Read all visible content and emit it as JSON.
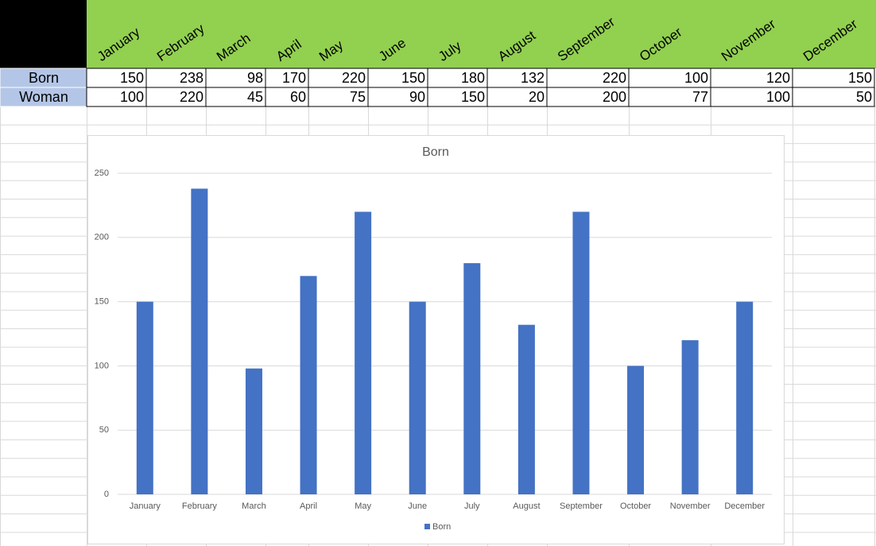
{
  "table": {
    "months": [
      "January",
      "February",
      "March",
      "April",
      "May",
      "June",
      "July",
      "August",
      "September",
      "October",
      "November",
      "December"
    ],
    "rows": [
      {
        "label": "Born",
        "values": [
          150,
          238,
          98,
          170,
          220,
          150,
          180,
          132,
          220,
          100,
          120,
          150
        ]
      },
      {
        "label": "Woman",
        "values": [
          100,
          220,
          45,
          60,
          75,
          90,
          150,
          20,
          200,
          77,
          100,
          50
        ]
      }
    ]
  },
  "chart_data": {
    "type": "bar",
    "title": "Born",
    "categories": [
      "January",
      "February",
      "March",
      "April",
      "May",
      "June",
      "July",
      "August",
      "September",
      "October",
      "November",
      "December"
    ],
    "series": [
      {
        "name": "Born",
        "color": "#4472c4",
        "values": [
          150,
          238,
          98,
          170,
          220,
          150,
          180,
          132,
          220,
          100,
          120,
          150
        ]
      }
    ],
    "ylim": [
      0,
      250
    ],
    "yticks": [
      0,
      50,
      100,
      150,
      200,
      250
    ],
    "grid": true
  }
}
